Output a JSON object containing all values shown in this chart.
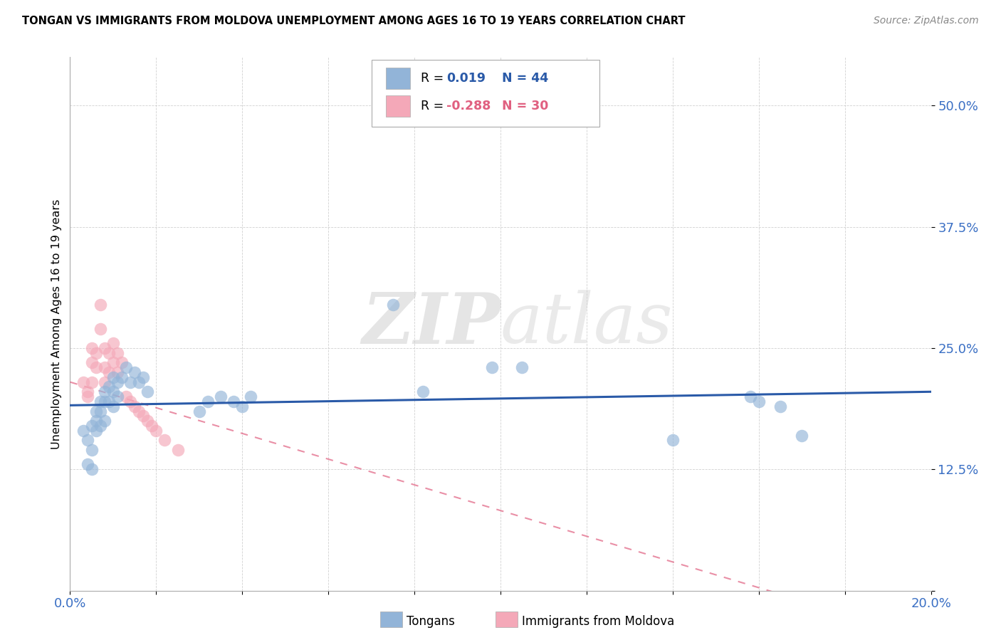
{
  "title": "TONGAN VS IMMIGRANTS FROM MOLDOVA UNEMPLOYMENT AMONG AGES 16 TO 19 YEARS CORRELATION CHART",
  "source": "Source: ZipAtlas.com",
  "ylabel": "Unemployment Among Ages 16 to 19 years",
  "xlim": [
    0.0,
    0.2
  ],
  "ylim": [
    0.0,
    0.55
  ],
  "xticks": [
    0.0,
    0.02,
    0.04,
    0.06,
    0.08,
    0.1,
    0.12,
    0.14,
    0.16,
    0.18,
    0.2
  ],
  "yticks": [
    0.0,
    0.125,
    0.25,
    0.375,
    0.5
  ],
  "ytick_labels": [
    "",
    "12.5%",
    "25.0%",
    "37.5%",
    "50.0%"
  ],
  "xtick_labels": [
    "0.0%",
    "",
    "",
    "",
    "",
    "",
    "",
    "",
    "",
    "",
    "20.0%"
  ],
  "blue_R": 0.019,
  "blue_N": 44,
  "pink_R": -0.288,
  "pink_N": 30,
  "blue_color": "#92b4d8",
  "pink_color": "#f4a8b8",
  "blue_line_color": "#2a5aa8",
  "pink_line_color": "#e06080",
  "watermark_zip": "ZIP",
  "watermark_atlas": "atlas",
  "tongans_x": [
    0.003,
    0.004,
    0.004,
    0.005,
    0.005,
    0.005,
    0.006,
    0.006,
    0.006,
    0.007,
    0.007,
    0.007,
    0.008,
    0.008,
    0.008,
    0.009,
    0.009,
    0.01,
    0.01,
    0.01,
    0.011,
    0.011,
    0.012,
    0.013,
    0.014,
    0.015,
    0.016,
    0.017,
    0.018,
    0.03,
    0.032,
    0.035,
    0.038,
    0.04,
    0.042,
    0.075,
    0.082,
    0.098,
    0.105,
    0.14,
    0.158,
    0.16,
    0.165,
    0.17
  ],
  "tongans_y": [
    0.165,
    0.155,
    0.13,
    0.17,
    0.145,
    0.125,
    0.185,
    0.175,
    0.165,
    0.195,
    0.185,
    0.17,
    0.205,
    0.195,
    0.175,
    0.21,
    0.195,
    0.22,
    0.205,
    0.19,
    0.215,
    0.2,
    0.22,
    0.23,
    0.215,
    0.225,
    0.215,
    0.22,
    0.205,
    0.185,
    0.195,
    0.2,
    0.195,
    0.19,
    0.2,
    0.295,
    0.205,
    0.23,
    0.23,
    0.155,
    0.2,
    0.195,
    0.19,
    0.16
  ],
  "moldova_x": [
    0.003,
    0.004,
    0.004,
    0.005,
    0.005,
    0.005,
    0.006,
    0.006,
    0.007,
    0.007,
    0.008,
    0.008,
    0.008,
    0.009,
    0.009,
    0.01,
    0.01,
    0.011,
    0.011,
    0.012,
    0.013,
    0.014,
    0.015,
    0.016,
    0.017,
    0.018,
    0.019,
    0.02,
    0.022,
    0.025
  ],
  "moldova_y": [
    0.215,
    0.205,
    0.2,
    0.25,
    0.235,
    0.215,
    0.245,
    0.23,
    0.295,
    0.27,
    0.25,
    0.23,
    0.215,
    0.245,
    0.225,
    0.255,
    0.235,
    0.245,
    0.225,
    0.235,
    0.2,
    0.195,
    0.19,
    0.185,
    0.18,
    0.175,
    0.17,
    0.165,
    0.155,
    0.145
  ]
}
